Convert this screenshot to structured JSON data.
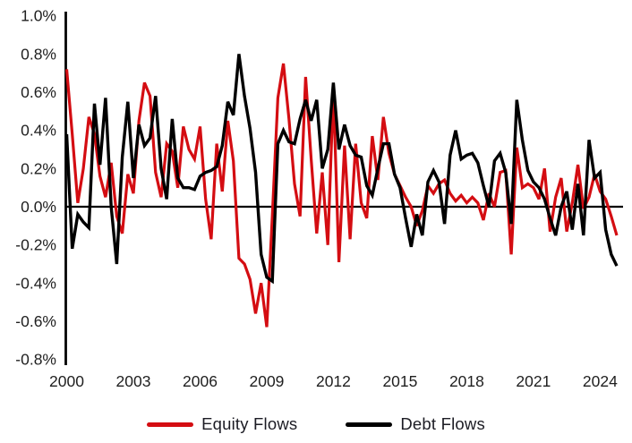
{
  "chart_data": {
    "type": "line",
    "title": "",
    "xlabel": "",
    "ylabel": "",
    "frequency": "quarterly",
    "x_start": "2000Q1",
    "x_end": "2024Q4",
    "x_tick_labels": [
      "2000",
      "2003",
      "2006",
      "2009",
      "2012",
      "2015",
      "2018",
      "2021",
      "2024"
    ],
    "x_tick_quarter_index": [
      0,
      12,
      24,
      36,
      48,
      60,
      72,
      84,
      96
    ],
    "y_tick_labels": [
      "1.0%",
      "0.8%",
      "0.6%",
      "0.4%",
      "0.2%",
      "0.0%",
      "-0.2%",
      "-0.4%",
      "-0.6%",
      "-0.8%"
    ],
    "y_ticks": [
      1.0,
      0.8,
      0.6,
      0.4,
      0.2,
      0.0,
      -0.2,
      -0.4,
      -0.6,
      -0.8
    ],
    "ylim": [
      -0.8,
      1.0
    ],
    "grid": false,
    "zero_line": true,
    "legend_position": "bottom-center",
    "series": [
      {
        "name": "Equity Flows",
        "color": "#d40d12",
        "values": [
          0.72,
          0.38,
          0.02,
          0.2,
          0.47,
          0.38,
          0.16,
          0.05,
          0.23,
          -0.05,
          -0.14,
          0.17,
          0.07,
          0.45,
          0.65,
          0.58,
          0.18,
          0.05,
          0.33,
          0.29,
          0.1,
          0.42,
          0.3,
          0.25,
          0.42,
          0.04,
          -0.17,
          0.33,
          0.08,
          0.45,
          0.24,
          -0.27,
          -0.3,
          -0.38,
          -0.56,
          -0.4,
          -0.63,
          -0.05,
          0.57,
          0.75,
          0.46,
          0.12,
          -0.05,
          0.68,
          0.25,
          -0.14,
          0.18,
          -0.2,
          0.61,
          -0.29,
          0.32,
          -0.17,
          0.33,
          0.02,
          -0.06,
          0.37,
          0.14,
          0.47,
          0.28,
          0.17,
          0.11,
          0.05,
          0.0,
          -0.1,
          -0.02,
          0.11,
          0.07,
          0.12,
          0.14,
          0.07,
          0.03,
          0.06,
          0.02,
          0.05,
          0.02,
          -0.07,
          0.07,
          0.0,
          0.18,
          0.19,
          -0.25,
          0.31,
          0.1,
          0.12,
          0.1,
          0.04,
          0.2,
          -0.13,
          0.05,
          0.15,
          -0.13,
          0.02,
          0.22,
          -0.01,
          0.05,
          0.17,
          0.08,
          0.04,
          -0.05,
          -0.15
        ]
      },
      {
        "name": "Debt Flows",
        "color": "#000000",
        "values": [
          0.38,
          -0.22,
          -0.04,
          -0.08,
          -0.11,
          0.54,
          0.22,
          0.57,
          0.0,
          -0.3,
          0.26,
          0.55,
          0.15,
          0.43,
          0.32,
          0.36,
          0.58,
          0.2,
          0.04,
          0.46,
          0.15,
          0.1,
          0.1,
          0.09,
          0.16,
          0.18,
          0.19,
          0.21,
          0.32,
          0.55,
          0.48,
          0.8,
          0.58,
          0.41,
          0.18,
          -0.25,
          -0.37,
          -0.39,
          0.33,
          0.4,
          0.34,
          0.33,
          0.46,
          0.56,
          0.45,
          0.56,
          0.2,
          0.3,
          0.65,
          0.3,
          0.43,
          0.32,
          0.27,
          0.26,
          0.11,
          0.06,
          0.2,
          0.33,
          0.33,
          0.17,
          0.1,
          -0.06,
          -0.21,
          -0.04,
          -0.15,
          0.13,
          0.19,
          0.13,
          -0.09,
          0.27,
          0.4,
          0.25,
          0.27,
          0.28,
          0.23,
          0.11,
          0.0,
          0.24,
          0.28,
          0.18,
          -0.09,
          0.56,
          0.35,
          0.19,
          0.13,
          0.1,
          0.04,
          -0.06,
          -0.15,
          0.0,
          0.08,
          -0.12,
          0.12,
          -0.15,
          0.35,
          0.15,
          0.18,
          -0.12,
          -0.25,
          -0.31
        ]
      }
    ]
  },
  "legend": {
    "items": [
      {
        "label": "Equity Flows",
        "color": "#d40d12"
      },
      {
        "label": "Debt Flows",
        "color": "#000000"
      }
    ]
  }
}
